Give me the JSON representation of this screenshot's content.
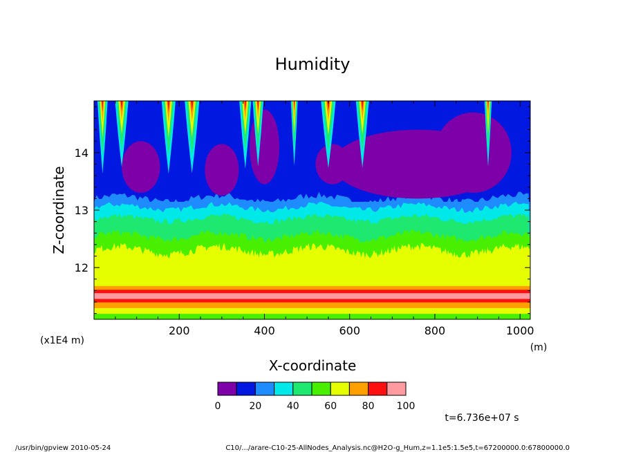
{
  "chart_data": {
    "type": "heatmap",
    "title": "Humidity",
    "xlabel": "X-coordinate",
    "ylabel": "Z-coordinate",
    "x_unit": "(m)",
    "y_unit": "(x1E4 m)",
    "xlim": [
      0,
      1024
    ],
    "ylim": [
      11.1,
      14.9
    ],
    "x_ticks": [
      200,
      400,
      600,
      800,
      1000
    ],
    "x_tick_labels": [
      "200",
      "400",
      "600",
      "800",
      "1000"
    ],
    "y_ticks": [
      12,
      13,
      14
    ],
    "y_tick_labels": [
      "12",
      "13",
      "14"
    ],
    "colorbar": {
      "levels": [
        0,
        10,
        20,
        30,
        40,
        50,
        60,
        70,
        80,
        90,
        100
      ],
      "labels": [
        "0",
        "20",
        "40",
        "60",
        "80",
        "100"
      ],
      "colors": [
        "#7d00a8",
        "#0018e0",
        "#1e8cff",
        "#00e8e8",
        "#1ee870",
        "#48f000",
        "#e6ff00",
        "#ffa000",
        "#ff1010",
        "#ff9aa0"
      ]
    },
    "layers": [
      {
        "z": [
          11.1,
          11.2
        ],
        "level": 50
      },
      {
        "z": [
          11.2,
          11.3
        ],
        "level": 60
      },
      {
        "z": [
          11.3,
          11.4
        ],
        "level": 70
      },
      {
        "z": [
          11.4,
          11.46
        ],
        "level": 80
      },
      {
        "z": [
          11.46,
          11.56
        ],
        "level": 90
      },
      {
        "z": [
          11.56,
          11.62
        ],
        "level": 80
      },
      {
        "z": [
          11.62,
          11.68
        ],
        "level": 70
      },
      {
        "z": [
          11.68,
          12.3
        ],
        "level": 60
      },
      {
        "z": [
          12.3,
          12.6
        ],
        "level": 50
      },
      {
        "z": [
          12.6,
          12.85
        ],
        "level": 40
      },
      {
        "z": [
          12.85,
          13.0
        ],
        "level": 30
      },
      {
        "z": [
          13.0,
          13.15
        ],
        "level": 20
      },
      {
        "z": [
          13.15,
          14.9
        ],
        "level": 10
      }
    ],
    "time_label": "t=6.736e+07 s"
  },
  "footer": {
    "left": "/usr/bin/gpview   2010-05-24",
    "right": "C10/.../arare-C10-25-AllNodes_Analysis.nc@H2O-g_Hum,z=1.1e5:1.5e5,t=67200000.0:67800000.0"
  }
}
